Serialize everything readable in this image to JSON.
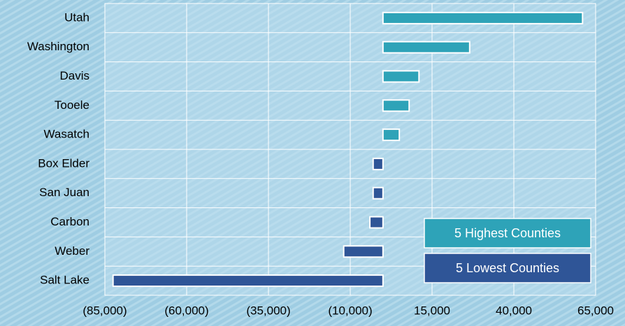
{
  "chart_data": {
    "type": "bar",
    "orientation": "horizontal",
    "categories": [
      "Utah",
      "Washington",
      "Davis",
      "Tooele",
      "Wasatch",
      "Box Elder",
      "San Juan",
      "Carbon",
      "Weber",
      "Salt Lake"
    ],
    "series": [
      {
        "name": "5 Highest Counties",
        "color": "#2ea3b8",
        "values": [
          61000,
          26500,
          11000,
          8000,
          5000,
          null,
          null,
          null,
          null,
          null
        ]
      },
      {
        "name": "5 Lowest Counties",
        "color": "#2f5597",
        "values": [
          null,
          null,
          null,
          null,
          null,
          -3000,
          -3000,
          -4000,
          -12000,
          -82500
        ]
      }
    ],
    "xlim": [
      -85000,
      65000
    ],
    "xticks": [
      {
        "value": -85000,
        "label": "(85,000)"
      },
      {
        "value": -60000,
        "label": "(60,000)"
      },
      {
        "value": -35000,
        "label": "(35,000)"
      },
      {
        "value": -10000,
        "label": "(10,000)"
      },
      {
        "value": 15000,
        "label": "15,000"
      },
      {
        "value": 40000,
        "label": "40,000"
      },
      {
        "value": 65000,
        "label": "65,000"
      }
    ],
    "grid": true,
    "legend": "lower right"
  }
}
